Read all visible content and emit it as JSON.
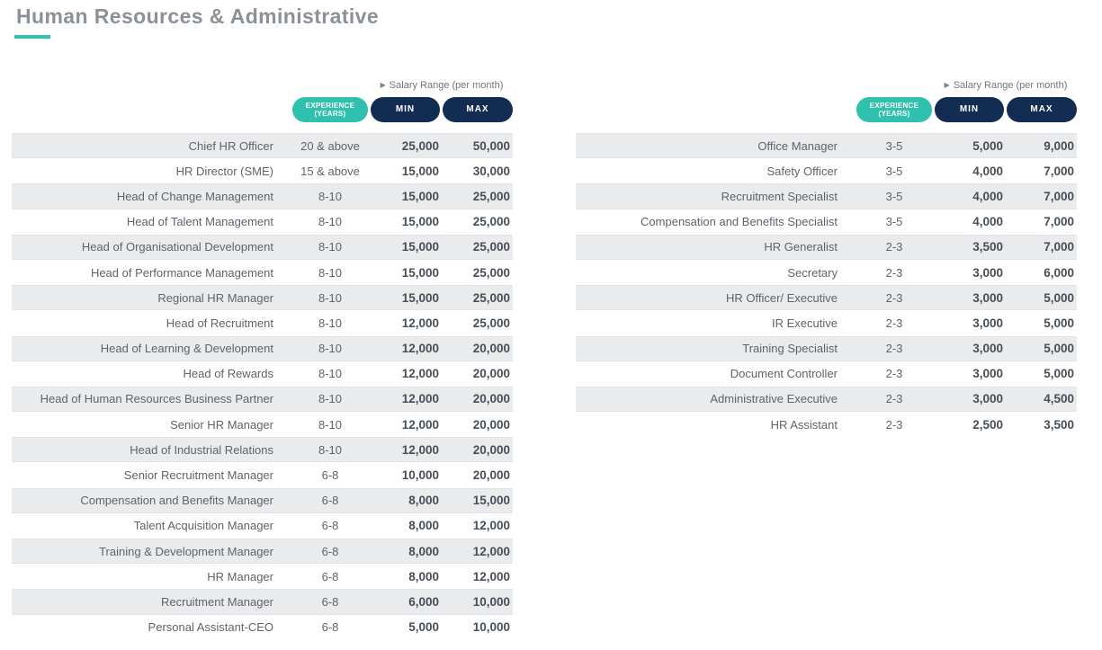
{
  "page": {
    "title": "Human Resources & Administrative"
  },
  "colors": {
    "accent_teal": "#2fc0ae",
    "pill_navy": "#132c52",
    "title_gray": "#8b9196",
    "row_stripe": "#eaebed",
    "body_text": "#5d646b",
    "number_text": "#474e57"
  },
  "header": {
    "salary_range_label": "Salary Range (per month)",
    "triangle_glyph": "▶",
    "experience_line1": "EXPERIENCE",
    "experience_line2": "(YEARS)",
    "min_label": "MIN",
    "max_label": "MAX"
  },
  "tables": {
    "left": {
      "rows": [
        {
          "title": "Chief HR Officer",
          "experience": "20 & above",
          "min": "25,000",
          "max": "50,000"
        },
        {
          "title": "HR Director (SME)",
          "experience": "15 & above",
          "min": "15,000",
          "max": "30,000"
        },
        {
          "title": "Head of Change Management",
          "experience": "8-10",
          "min": "15,000",
          "max": "25,000"
        },
        {
          "title": "Head of Talent Management",
          "experience": "8-10",
          "min": "15,000",
          "max": "25,000"
        },
        {
          "title": "Head of Organisational Development",
          "experience": "8-10",
          "min": "15,000",
          "max": "25,000"
        },
        {
          "title": "Head of Performance Management",
          "experience": "8-10",
          "min": "15,000",
          "max": "25,000"
        },
        {
          "title": "Regional HR Manager",
          "experience": "8-10",
          "min": "15,000",
          "max": "25,000"
        },
        {
          "title": "Head of Recruitment",
          "experience": "8-10",
          "min": "12,000",
          "max": "25,000"
        },
        {
          "title": "Head of Learning & Development",
          "experience": "8-10",
          "min": "12,000",
          "max": "20,000"
        },
        {
          "title": "Head of Rewards",
          "experience": "8-10",
          "min": "12,000",
          "max": "20,000"
        },
        {
          "title": "Head of Human Resources Business Partner",
          "experience": "8-10",
          "min": "12,000",
          "max": "20,000"
        },
        {
          "title": "Senior HR Manager",
          "experience": "8-10",
          "min": "12,000",
          "max": "20,000"
        },
        {
          "title": "Head of Industrial Relations",
          "experience": "8-10",
          "min": "12,000",
          "max": "20,000"
        },
        {
          "title": "Senior Recruitment Manager",
          "experience": "6-8",
          "min": "10,000",
          "max": "20,000"
        },
        {
          "title": "Compensation and Benefits Manager",
          "experience": "6-8",
          "min": "8,000",
          "max": "15,000"
        },
        {
          "title": "Talent Acquisition Manager",
          "experience": "6-8",
          "min": "8,000",
          "max": "12,000"
        },
        {
          "title": "Training & Development Manager",
          "experience": "6-8",
          "min": "8,000",
          "max": "12,000"
        },
        {
          "title": "HR Manager",
          "experience": "6-8",
          "min": "8,000",
          "max": "12,000"
        },
        {
          "title": "Recruitment Manager",
          "experience": "6-8",
          "min": "6,000",
          "max": "10,000"
        },
        {
          "title": "Personal Assistant-CEO",
          "experience": "6-8",
          "min": "5,000",
          "max": "10,000"
        }
      ]
    },
    "right": {
      "rows": [
        {
          "title": "Office Manager",
          "experience": "3-5",
          "min": "5,000",
          "max": "9,000"
        },
        {
          "title": "Safety Officer",
          "experience": "3-5",
          "min": "4,000",
          "max": "7,000"
        },
        {
          "title": "Recruitment Specialist",
          "experience": "3-5",
          "min": "4,000",
          "max": "7,000"
        },
        {
          "title": "Compensation and Benefits Specialist",
          "experience": "3-5",
          "min": "4,000",
          "max": "7,000"
        },
        {
          "title": "HR Generalist",
          "experience": "2-3",
          "min": "3,500",
          "max": "7,000"
        },
        {
          "title": "Secretary",
          "experience": "2-3",
          "min": "3,000",
          "max": "6,000"
        },
        {
          "title": "HR Officer/ Executive",
          "experience": "2-3",
          "min": "3,000",
          "max": "5,000"
        },
        {
          "title": "IR Executive",
          "experience": "2-3",
          "min": "3,000",
          "max": "5,000"
        },
        {
          "title": "Training Specialist",
          "experience": "2-3",
          "min": "3,000",
          "max": "5,000"
        },
        {
          "title": "Document Controller",
          "experience": "2-3",
          "min": "3,000",
          "max": "5,000"
        },
        {
          "title": "Administrative Executive",
          "experience": "2-3",
          "min": "3,000",
          "max": "4,500"
        },
        {
          "title": "HR Assistant",
          "experience": "2-3",
          "min": "2,500",
          "max": "3,500"
        }
      ]
    }
  }
}
